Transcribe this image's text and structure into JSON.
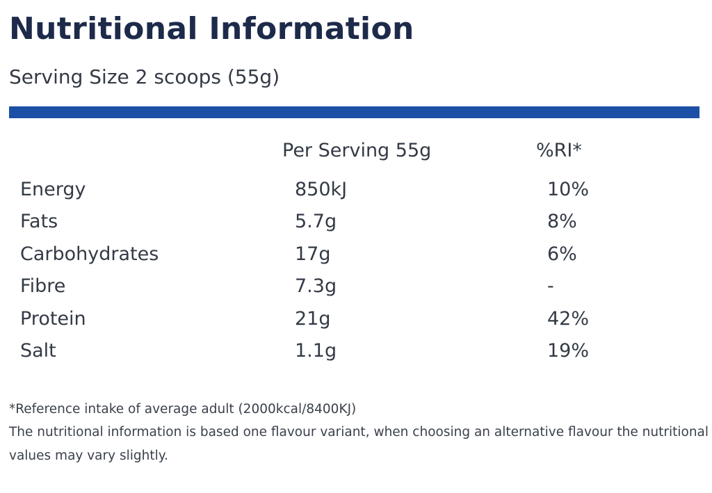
{
  "title": "Nutritional Information",
  "serving_size": "Serving Size 2 scoops (55g)",
  "colors": {
    "accent_bar": "#1c4fa6",
    "title": "#1d2a4a",
    "text": "#333a45"
  },
  "table": {
    "headers": {
      "per_serving": "Per Serving 55g",
      "ri": "%RI*"
    },
    "rows": [
      {
        "name": "Energy",
        "amount": "850kJ",
        "ri": "10%"
      },
      {
        "name": "Fats",
        "amount": "5.7g",
        "ri": "8%"
      },
      {
        "name": "Carbohydrates",
        "amount": "17g",
        "ri": "6%"
      },
      {
        "name": "Fibre",
        "amount": "7.3g",
        "ri": "-"
      },
      {
        "name": "Protein",
        "amount": "21g",
        "ri": "42%"
      },
      {
        "name": "Salt",
        "amount": "1.1g",
        "ri": "19%"
      }
    ]
  },
  "footnotes": {
    "reference_intake": "*Reference intake of average adult (2000kcal/8400KJ)",
    "disclaimer_line1": "The nutritional information is based one flavour variant, when choosing an alternative flavour the nutritional",
    "disclaimer_line2": "values may vary slightly."
  }
}
